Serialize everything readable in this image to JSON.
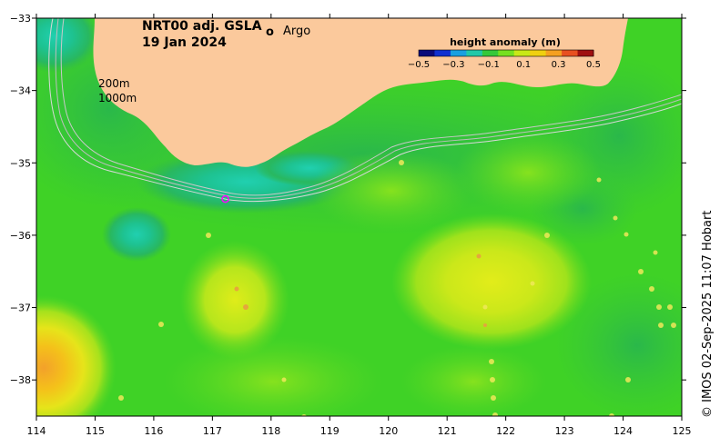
{
  "title": {
    "line1": "NRT00 adj. GSLA",
    "line2": "19 Jan 2024"
  },
  "legend": {
    "argo_symbol": "o",
    "argo_label": "Argo",
    "argo_color": "#ff00ff"
  },
  "depth_labels": [
    "200m",
    "1000m"
  ],
  "colorbar": {
    "title": "height anomaly (m)",
    "ticks": [
      "−0.5",
      "−0.3",
      "−0.1",
      "0.1",
      "0.3",
      "0.5"
    ],
    "colors": [
      "#0a0a7a",
      "#1030d0",
      "#1aa0e0",
      "#22c8a8",
      "#35c83a",
      "#76e020",
      "#c8e818",
      "#f0d010",
      "#f5a020",
      "#e85020",
      "#a01010"
    ]
  },
  "credit": "© IMOS 02-Sep-2025 11:07 Hobart",
  "map": {
    "lon_range": [
      114,
      125
    ],
    "lat_range": [
      -38.5,
      -33
    ],
    "x_ticks": [
      "114",
      "115",
      "116",
      "117",
      "118",
      "119",
      "120",
      "121",
      "122",
      "123",
      "124",
      "125"
    ],
    "y_ticks": [
      "−33",
      "−34",
      "−35",
      "−36",
      "−37",
      "−38"
    ],
    "land_color": "#fbc99c",
    "ocean_background": "#3fd226"
  },
  "argo_floats": [
    {
      "lon": 117.22,
      "lat": -35.5
    }
  ]
}
